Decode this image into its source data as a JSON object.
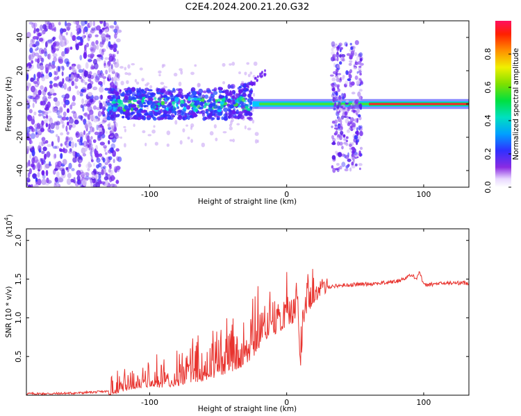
{
  "title": "C2E4.2024.200.21.20.G32",
  "colors": {
    "snr_line": "#e8332e",
    "frame": "#000000",
    "spectro_base": "#6a1cf0",
    "spectro_light": "#c9a6f5"
  },
  "chart_data": [
    {
      "type": "heatmap",
      "xlabel": "Height of straight line (km)",
      "ylabel": "Frequency (Hz)",
      "xlim": [
        -190,
        133
      ],
      "ylim": [
        -50,
        50
      ],
      "xticks": [
        -100,
        0,
        100
      ],
      "xtick_labels": [
        "-100",
        "0",
        "100"
      ],
      "yticks": [
        -40,
        -20,
        0,
        20,
        40
      ],
      "ytick_labels": [
        "-40",
        "-20",
        "0",
        "20",
        "40"
      ],
      "colorbar": {
        "label": "Normalized spectral amplitude",
        "range": [
          0,
          1
        ],
        "ticks": [
          0.0,
          0.2,
          0.4,
          0.6,
          0.8
        ],
        "tick_labels": [
          "0.0",
          "0.2",
          "0.4",
          "0.6",
          "0.8"
        ]
      },
      "features": {
        "noise_region_km": [
          -190,
          -130
        ],
        "broadband_band_km": [
          -130,
          -25
        ],
        "central_line_hz": 0,
        "strong_line_km": [
          60,
          133
        ],
        "burst_region_km": [
          33,
          55
        ]
      }
    },
    {
      "type": "line",
      "xlabel": "Height of straight line (km)",
      "ylabel": "SNR (10 * v/v)",
      "scale_label": "(x10",
      "scale_exp": "4",
      "xlim": [
        -190,
        133
      ],
      "ylim": [
        0,
        2.15
      ],
      "xticks": [
        -100,
        0,
        100
      ],
      "xtick_labels": [
        "-100",
        "0",
        "100"
      ],
      "yticks": [
        0.5,
        1.0,
        1.5,
        2.0
      ],
      "ytick_labels": [
        "0.5",
        "1.0",
        "1.5",
        "2.0"
      ],
      "series": [
        {
          "name": "SNR",
          "x": [
            -190,
            -170,
            -150,
            -130,
            -120,
            -110,
            -100,
            -90,
            -80,
            -70,
            -60,
            -50,
            -40,
            -30,
            -25,
            -20,
            -15,
            -10,
            -5,
            0,
            5,
            8,
            10,
            13,
            18,
            25,
            30,
            40,
            50,
            60,
            70,
            80,
            85,
            90,
            95,
            97,
            100,
            110,
            120,
            133
          ],
          "values": [
            0.02,
            0.02,
            0.03,
            0.05,
            0.12,
            0.18,
            0.2,
            0.22,
            0.25,
            0.3,
            0.35,
            0.42,
            0.5,
            0.6,
            0.7,
            0.8,
            0.9,
            0.95,
            1.0,
            1.05,
            1.1,
            1.25,
            0.5,
            1.2,
            1.3,
            1.38,
            1.4,
            1.42,
            1.43,
            1.44,
            1.45,
            1.47,
            1.5,
            1.55,
            1.52,
            1.6,
            1.42,
            1.44,
            1.45,
            1.45
          ]
        }
      ]
    }
  ]
}
